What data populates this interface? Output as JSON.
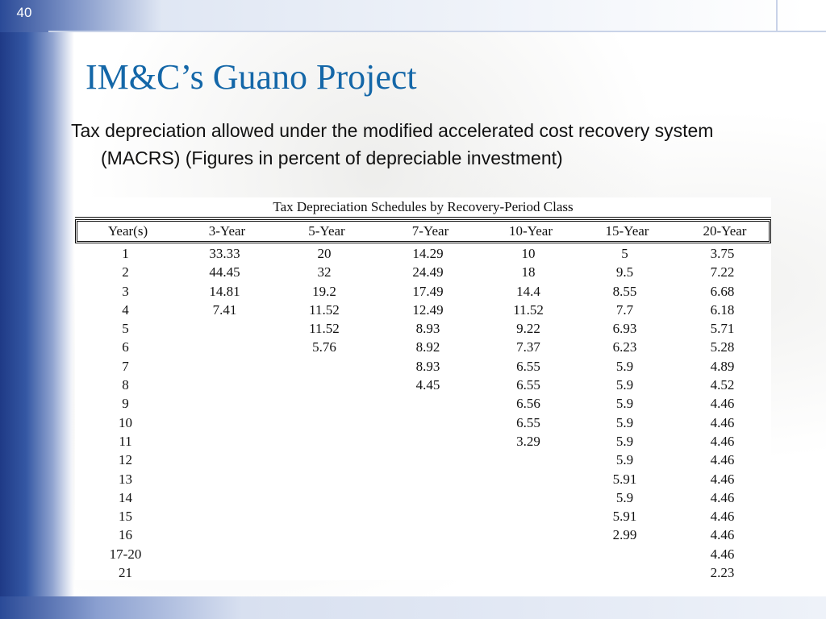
{
  "slide": {
    "number": "40",
    "title": "IM&C’s Guano Project",
    "body": "Tax depreciation allowed under the modified accelerated cost recovery system (MACRS)  (Figures in percent of depreciable investment)"
  },
  "table": {
    "caption": "Tax Depreciation Schedules by Recovery-Period Class",
    "headers": [
      "Year(s)",
      "3-Year",
      "5-Year",
      "7-Year",
      "10-Year",
      "15-Year",
      "20-Year"
    ],
    "rows": [
      [
        "1",
        "33.33",
        "20",
        "14.29",
        "10",
        "5",
        "3.75"
      ],
      [
        "2",
        "44.45",
        "32",
        "24.49",
        "18",
        "9.5",
        "7.22"
      ],
      [
        "3",
        "14.81",
        "19.2",
        "17.49",
        "14.4",
        "8.55",
        "6.68"
      ],
      [
        "4",
        "7.41",
        "11.52",
        "12.49",
        "11.52",
        "7.7",
        "6.18"
      ],
      [
        "5",
        "",
        "11.52",
        "8.93",
        "9.22",
        "6.93",
        "5.71"
      ],
      [
        "6",
        "",
        "5.76",
        "8.92",
        "7.37",
        "6.23",
        "5.28"
      ],
      [
        "7",
        "",
        "",
        "8.93",
        "6.55",
        "5.9",
        "4.89"
      ],
      [
        "8",
        "",
        "",
        "4.45",
        "6.55",
        "5.9",
        "4.52"
      ],
      [
        "9",
        "",
        "",
        "",
        "6.56",
        "5.9",
        "4.46"
      ],
      [
        "10",
        "",
        "",
        "",
        "6.55",
        "5.9",
        "4.46"
      ],
      [
        "11",
        "",
        "",
        "",
        "3.29",
        "5.9",
        "4.46"
      ],
      [
        "12",
        "",
        "",
        "",
        "",
        "5.9",
        "4.46"
      ],
      [
        "13",
        "",
        "",
        "",
        "",
        "5.91",
        "4.46"
      ],
      [
        "14",
        "",
        "",
        "",
        "",
        "5.9",
        "4.46"
      ],
      [
        "15",
        "",
        "",
        "",
        "",
        "5.91",
        "4.46"
      ],
      [
        "16",
        "",
        "",
        "",
        "",
        "2.99",
        "4.46"
      ],
      [
        "17-20",
        "",
        "",
        "",
        "",
        "",
        "4.46"
      ],
      [
        "21",
        "",
        "",
        "",
        "",
        "",
        "2.23"
      ]
    ]
  }
}
